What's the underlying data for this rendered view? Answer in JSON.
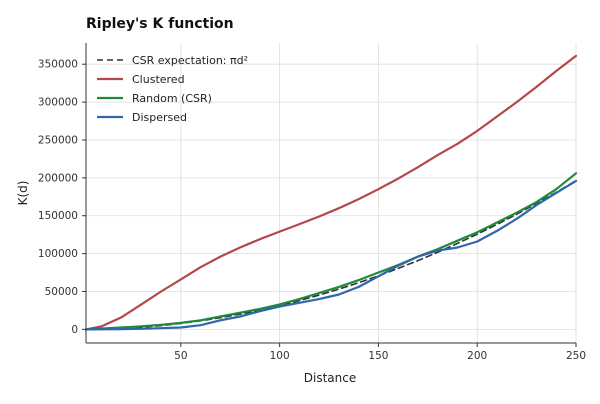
{
  "chart_data": {
    "type": "line",
    "title": "Ripley's K function",
    "xlabel": "Distance",
    "ylabel": "K(d)",
    "xlim": [
      2,
      250
    ],
    "ylim": [
      -18000,
      378000
    ],
    "xticks": [
      50,
      100,
      150,
      200,
      250
    ],
    "yticks": [
      0,
      50000,
      100000,
      150000,
      200000,
      250000,
      300000,
      350000
    ],
    "grid": true,
    "legend_position": "top-left",
    "series": [
      {
        "name": "CSR expectation: πd²",
        "style": "dashed",
        "color": "#333333",
        "x": [
          2,
          10,
          20,
          30,
          40,
          50,
          60,
          70,
          80,
          90,
          100,
          110,
          120,
          130,
          140,
          150,
          160,
          170,
          180,
          190,
          200,
          210,
          220,
          230,
          240,
          250
        ],
        "y": [
          13,
          314,
          1257,
          2827,
          5027,
          7854,
          11310,
          15394,
          20106,
          25447,
          31416,
          38013,
          45239,
          53093,
          61575,
          70686,
          80425,
          90792,
          101788,
          113411,
          125664,
          138544,
          152053,
          166190,
          180956,
          196350
        ]
      },
      {
        "name": "Clustered",
        "style": "solid",
        "color": "#b5474b",
        "x": [
          2,
          10,
          20,
          30,
          40,
          50,
          60,
          70,
          80,
          90,
          100,
          110,
          120,
          130,
          140,
          150,
          160,
          170,
          180,
          190,
          200,
          210,
          220,
          230,
          240,
          250
        ],
        "y": [
          0,
          4000,
          16000,
          33000,
          50000,
          66000,
          82000,
          96000,
          108000,
          119000,
          129000,
          139000,
          149000,
          160000,
          172000,
          185000,
          199000,
          214000,
          230000,
          245000,
          262000,
          281000,
          300000,
          320000,
          341000,
          361000
        ]
      },
      {
        "name": "Random (CSR)",
        "style": "solid",
        "color": "#1e8a3a",
        "x": [
          2,
          10,
          20,
          30,
          40,
          50,
          60,
          70,
          80,
          90,
          100,
          110,
          120,
          130,
          140,
          150,
          160,
          170,
          180,
          190,
          200,
          210,
          220,
          230,
          240,
          250
        ],
        "y": [
          0,
          1000,
          2500,
          4000,
          6000,
          8500,
          12000,
          17000,
          22000,
          27000,
          33000,
          40000,
          48000,
          56000,
          65000,
          75000,
          85000,
          96000,
          106000,
          117000,
          128000,
          141000,
          154000,
          168000,
          185000,
          206000
        ]
      },
      {
        "name": "Dispersed",
        "style": "solid",
        "color": "#2f66ac",
        "x": [
          2,
          10,
          20,
          30,
          40,
          50,
          60,
          70,
          80,
          90,
          100,
          110,
          120,
          130,
          140,
          150,
          160,
          170,
          180,
          190,
          200,
          210,
          220,
          230,
          240,
          250
        ],
        "y": [
          0,
          100,
          300,
          800,
          1500,
          2500,
          5500,
          12000,
          17000,
          24000,
          30000,
          35000,
          40000,
          46000,
          56000,
          70000,
          84000,
          96000,
          104000,
          108000,
          116000,
          130000,
          146000,
          164000,
          180000,
          196000
        ]
      }
    ]
  }
}
